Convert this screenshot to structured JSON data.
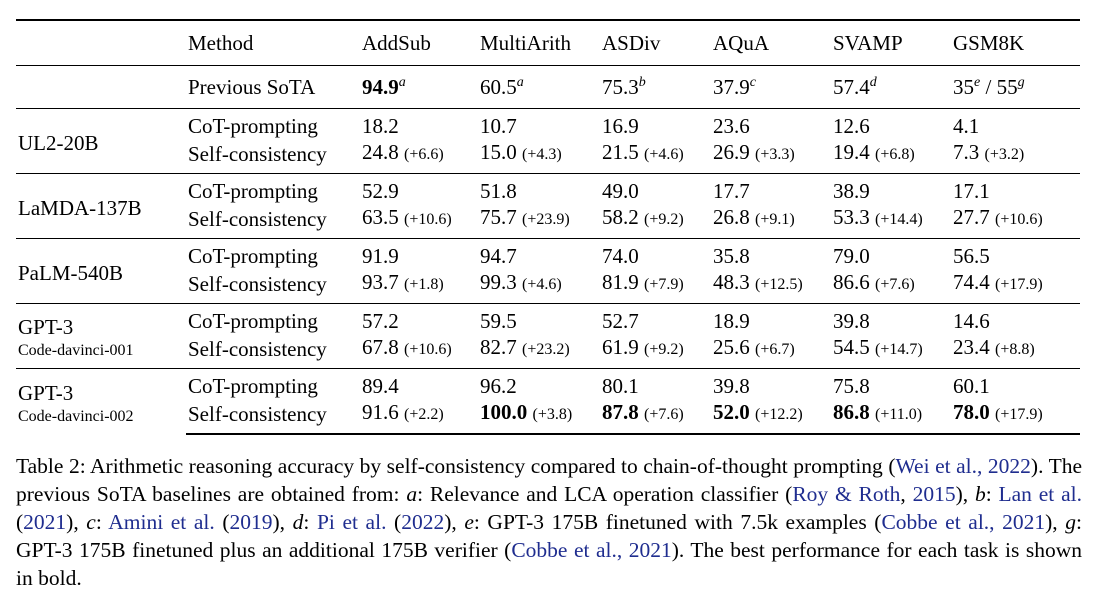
{
  "table": {
    "columns": [
      "Method",
      "AddSub",
      "MultiArith",
      "ASDiv",
      "AQuA",
      "SVAMP",
      "GSM8K"
    ],
    "previous_sota": {
      "label": "Previous SoTA",
      "values": [
        {
          "value": "94.9",
          "sup": "a",
          "bold": true
        },
        {
          "value": "60.5",
          "sup": "a",
          "bold": false
        },
        {
          "value": "75.3",
          "sup": "b",
          "bold": false
        },
        {
          "value": "37.9",
          "sup": "c",
          "bold": false
        },
        {
          "value": "57.4",
          "sup": "d",
          "bold": false
        }
      ],
      "gsm8k": {
        "v1": "35",
        "s1": "e",
        "sep": " / ",
        "v2": "55",
        "s2": "g"
      }
    },
    "groups": [
      {
        "model": "UL2-20B",
        "sub": "",
        "rows": [
          {
            "method": "CoT-prompting",
            "cells": [
              {
                "v": "18.2"
              },
              {
                "v": "10.7"
              },
              {
                "v": "16.9"
              },
              {
                "v": "23.6"
              },
              {
                "v": "12.6"
              },
              {
                "v": "4.1"
              }
            ]
          },
          {
            "method": "Self-consistency",
            "cells": [
              {
                "v": "24.8",
                "d": "(+6.6)"
              },
              {
                "v": "15.0",
                "d": "(+4.3)"
              },
              {
                "v": "21.5",
                "d": "(+4.6)"
              },
              {
                "v": "26.9",
                "d": "(+3.3)"
              },
              {
                "v": "19.4",
                "d": "(+6.8)"
              },
              {
                "v": "7.3",
                "d": "(+3.2)"
              }
            ]
          }
        ]
      },
      {
        "model": "LaMDA-137B",
        "sub": "",
        "rows": [
          {
            "method": "CoT-prompting",
            "cells": [
              {
                "v": "52.9"
              },
              {
                "v": "51.8"
              },
              {
                "v": "49.0"
              },
              {
                "v": "17.7"
              },
              {
                "v": "38.9"
              },
              {
                "v": "17.1"
              }
            ]
          },
          {
            "method": "Self-consistency",
            "cells": [
              {
                "v": "63.5",
                "d": "(+10.6)"
              },
              {
                "v": "75.7",
                "d": "(+23.9)"
              },
              {
                "v": "58.2",
                "d": "(+9.2)"
              },
              {
                "v": "26.8",
                "d": "(+9.1)"
              },
              {
                "v": "53.3",
                "d": "(+14.4)"
              },
              {
                "v": "27.7",
                "d": "(+10.6)"
              }
            ]
          }
        ]
      },
      {
        "model": "PaLM-540B",
        "sub": "",
        "rows": [
          {
            "method": "CoT-prompting",
            "cells": [
              {
                "v": "91.9"
              },
              {
                "v": "94.7"
              },
              {
                "v": "74.0"
              },
              {
                "v": "35.8"
              },
              {
                "v": "79.0"
              },
              {
                "v": "56.5"
              }
            ]
          },
          {
            "method": "Self-consistency",
            "cells": [
              {
                "v": "93.7",
                "d": "(+1.8)"
              },
              {
                "v": "99.3",
                "d": "(+4.6)"
              },
              {
                "v": "81.9",
                "d": "(+7.9)"
              },
              {
                "v": "48.3",
                "d": "(+12.5)"
              },
              {
                "v": "86.6",
                "d": "(+7.6)"
              },
              {
                "v": "74.4",
                "d": "(+17.9)"
              }
            ]
          }
        ]
      },
      {
        "model": "GPT-3",
        "sub": "Code-davinci-001",
        "rows": [
          {
            "method": "CoT-prompting",
            "cells": [
              {
                "v": "57.2"
              },
              {
                "v": "59.5"
              },
              {
                "v": "52.7"
              },
              {
                "v": "18.9"
              },
              {
                "v": "39.8"
              },
              {
                "v": "14.6"
              }
            ]
          },
          {
            "method": "Self-consistency",
            "cells": [
              {
                "v": "67.8",
                "d": "(+10.6)"
              },
              {
                "v": "82.7",
                "d": "(+23.2)"
              },
              {
                "v": "61.9",
                "d": "(+9.2)"
              },
              {
                "v": "25.6",
                "d": "(+6.7)"
              },
              {
                "v": "54.5",
                "d": "(+14.7)"
              },
              {
                "v": "23.4",
                "d": "(+8.8)"
              }
            ]
          }
        ]
      },
      {
        "model": "GPT-3",
        "sub": "Code-davinci-002",
        "rows": [
          {
            "method": "CoT-prompting",
            "cells": [
              {
                "v": "89.4"
              },
              {
                "v": "96.2"
              },
              {
                "v": "80.1"
              },
              {
                "v": "39.8"
              },
              {
                "v": "75.8"
              },
              {
                "v": "60.1"
              }
            ]
          },
          {
            "method": "Self-consistency",
            "cells": [
              {
                "v": "91.6",
                "d": "(+2.2)"
              },
              {
                "v": "100.0",
                "d": "(+3.8)",
                "bold": true
              },
              {
                "v": "87.8",
                "d": "(+7.6)",
                "bold": true
              },
              {
                "v": "52.0",
                "d": "(+12.2)",
                "bold": true
              },
              {
                "v": "86.8",
                "d": "(+11.0)",
                "bold": true
              },
              {
                "v": "78.0",
                "d": "(+17.9)",
                "bold": true
              }
            ]
          }
        ]
      }
    ]
  },
  "caption": {
    "label": "Table 2:",
    "t1": " Arithmetic reasoning accuracy by self-consistency compared to chain-of-thought prompting (",
    "c1": "Wei et al., 2022",
    "t2": "). The previous SoTA baselines are obtained from: ",
    "ka": "a",
    "t3": ": Relevance and LCA operation classifier (",
    "c2": "Roy & Roth",
    "t4": ", ",
    "c3": "2015",
    "t5": "), ",
    "kb": "b",
    "t6": ": ",
    "c4": "Lan et al.",
    "t7": " (",
    "c5": "2021",
    "t8": "), ",
    "kc": "c",
    "t9": ": ",
    "c6": "Amini et al.",
    "t10": " (",
    "c7": "2019",
    "t11": "), ",
    "kd": "d",
    "t12": ": ",
    "c8": "Pi et al.",
    "t13": " (",
    "c9": "2022",
    "t14": "), ",
    "ke": "e",
    "t15": ": GPT-3 175B finetuned with 7.5k examples (",
    "c10": "Cobbe et al., 2021",
    "t16": "), ",
    "kg": "g",
    "t17": ": GPT-3 175B finetuned plus an additional 175B verifier (",
    "c11": "Cobbe et al., 2021",
    "t18": "). The best performance for each task is shown in bold."
  }
}
